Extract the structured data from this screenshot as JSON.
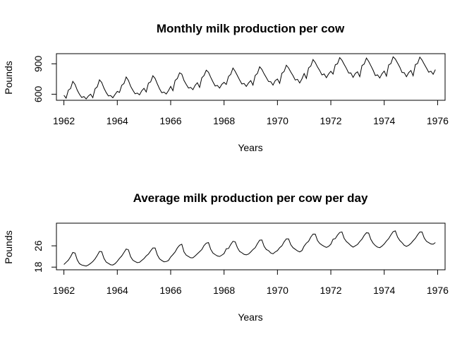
{
  "chart_data": [
    {
      "type": "line",
      "title": "Monthly milk production per cow",
      "xlabel": "Years",
      "ylabel": "Pounds",
      "xlim": [
        1961.72,
        1976.28
      ],
      "ylim": [
        540,
        1000
      ],
      "x_ticks": [
        "1962",
        "1964",
        "1966",
        "1968",
        "1970",
        "1972",
        "1974",
        "1976"
      ],
      "y_ticks": [
        "600",
        "900"
      ],
      "x_start": 1962,
      "step": 0.083333,
      "series": [
        {
          "values": [
            589,
            561,
            640,
            656,
            727,
            697,
            640,
            599,
            568,
            577,
            553,
            582,
            600,
            566,
            653,
            673,
            742,
            716,
            660,
            617,
            583,
            587,
            565,
            598,
            628,
            618,
            688,
            705,
            770,
            736,
            678,
            639,
            604,
            611,
            594,
            634,
            658,
            622,
            709,
            722,
            782,
            756,
            702,
            653,
            615,
            621,
            602,
            635,
            677,
            635,
            736,
            755,
            811,
            798,
            735,
            697,
            661,
            667,
            645,
            688,
            713,
            667,
            762,
            784,
            837,
            817,
            767,
            722,
            681,
            687,
            660,
            698,
            717,
            696,
            775,
            796,
            858,
            826,
            783,
            740,
            701,
            706,
            677,
            711,
            734,
            690,
            785,
            805,
            871,
            845,
            801,
            764,
            725,
            723,
            690,
            734,
            750,
            707,
            807,
            824,
            886,
            859,
            819,
            783,
            740,
            747,
            711,
            751,
            804,
            756,
            860,
            878,
            942,
            913,
            869,
            834,
            790,
            800,
            763,
            800,
            826,
            799,
            890,
            900,
            961,
            935,
            894,
            855,
            809,
            810,
            766,
            805,
            821,
            773,
            883,
            898,
            957,
            924,
            881,
            837,
            784,
            791,
            760,
            802,
            828,
            778,
            889,
            902,
            969,
            947,
            908,
            867,
            815,
            812,
            773,
            813,
            834,
            782,
            892,
            903,
            966,
            937,
            896,
            858,
            817,
            827,
            797,
            843
          ]
        }
      ]
    },
    {
      "type": "line",
      "title": "Average milk production per cow per day",
      "xlabel": "Years",
      "ylabel": "Pounds",
      "xlim": [
        1961.72,
        1976.28
      ],
      "ylim": [
        17.0,
        34.5
      ],
      "x_ticks": [
        "1962",
        "1964",
        "1966",
        "1968",
        "1970",
        "1972",
        "1974",
        "1976"
      ],
      "y_ticks": [
        "18",
        "26"
      ],
      "x_start": 1962,
      "step": 0.083333,
      "series": [
        {
          "values": [
            19.0,
            19.8,
            20.6,
            21.9,
            23.5,
            23.3,
            20.7,
            19.3,
            18.8,
            18.6,
            18.4,
            18.8,
            19.4,
            20.1,
            21.1,
            22.4,
            23.9,
            23.8,
            21.3,
            19.9,
            19.4,
            18.9,
            18.8,
            19.3,
            20.2,
            21.3,
            22.2,
            23.5,
            24.8,
            24.5,
            21.9,
            20.6,
            20.1,
            19.7,
            19.8,
            20.5,
            21.2,
            22.2,
            22.9,
            24.1,
            25.2,
            25.2,
            22.6,
            21.1,
            20.5,
            20.0,
            20.1,
            20.5,
            21.8,
            22.7,
            23.7,
            25.2,
            26.2,
            26.6,
            23.7,
            22.5,
            22.0,
            21.5,
            21.5,
            22.2,
            23.0,
            23.8,
            24.6,
            26.1,
            27.0,
            27.2,
            24.7,
            23.3,
            22.7,
            22.2,
            22.0,
            22.5,
            23.1,
            24.9,
            25.0,
            26.5,
            27.7,
            27.5,
            25.3,
            23.9,
            23.4,
            22.8,
            22.6,
            22.9,
            23.7,
            24.6,
            25.3,
            26.8,
            28.1,
            28.2,
            25.8,
            24.6,
            24.2,
            23.3,
            23.0,
            23.7,
            24.2,
            25.3,
            26.0,
            27.5,
            28.6,
            28.6,
            26.4,
            25.3,
            24.7,
            24.1,
            23.7,
            24.2,
            25.9,
            27.0,
            27.7,
            29.3,
            30.4,
            30.4,
            28.0,
            26.9,
            26.3,
            25.8,
            25.4,
            25.8,
            26.6,
            28.5,
            28.7,
            30.0,
            31.0,
            31.2,
            28.8,
            27.6,
            26.9,
            26.1,
            25.5,
            26.0,
            26.5,
            27.6,
            28.5,
            29.9,
            30.9,
            30.8,
            28.4,
            27.0,
            26.1,
            25.5,
            25.3,
            25.9,
            26.7,
            27.8,
            28.7,
            30.1,
            31.3,
            31.6,
            29.3,
            28.0,
            27.2,
            26.2,
            25.8,
            26.2,
            26.9,
            27.9,
            28.8,
            30.1,
            31.2,
            31.2,
            28.9,
            27.7,
            27.2,
            26.7,
            26.6,
            27.2
          ]
        }
      ]
    }
  ]
}
